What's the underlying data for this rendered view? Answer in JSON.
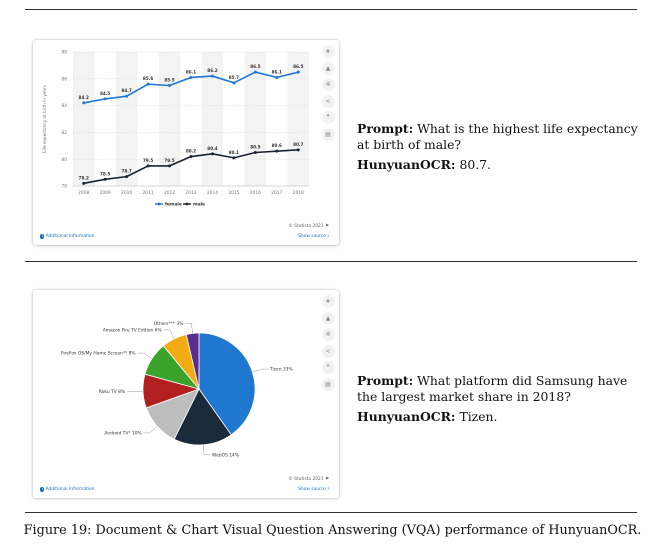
{
  "panels": [
    {
      "id": "line",
      "chart_data": {
        "type": "line",
        "x": [
          "2008",
          "2009",
          "2010",
          "2011",
          "2012",
          "2013",
          "2014",
          "2015",
          "2016",
          "2017",
          "2018"
        ],
        "series": [
          {
            "name": "female",
            "color": "#1f77d0",
            "values": [
              84.2,
              84.5,
              84.7,
              85.6,
              85.5,
              86.1,
              86.2,
              85.7,
              86.5,
              86.1,
              86.5
            ],
            "labels": [
              "84.2",
              "84.5",
              "84.7",
              "85.6",
              "85.5",
              "86.1",
              "86.2",
              "85.7",
              "86.5",
              "86.1",
              "86.5"
            ]
          },
          {
            "name": "male",
            "color": "#1a2430",
            "values": [
              78.2,
              78.5,
              78.7,
              79.5,
              79.5,
              80.2,
              80.4,
              80.1,
              80.5,
              80.6,
              80.7
            ],
            "labels": [
              "78.2",
              "78.5",
              "78.7",
              "79.5",
              "79.5",
              "80.2",
              "80.4",
              "80.1",
              "80.5",
              "80.6",
              "80.7"
            ]
          }
        ],
        "yticks": [
          "78",
          "80",
          "82",
          "84",
          "86",
          "88"
        ],
        "ylim": [
          78,
          88
        ],
        "ylabel": "Life expectancy at birth in years",
        "legend": "bottom-center",
        "grid": true
      },
      "credit": "© Statista 2021",
      "additional_info": "Additional Information",
      "show_source": "Show source",
      "prompt_label": "Prompt:",
      "prompt": "What is the highest life expectancy at birth of male?",
      "answer_label": "HunyuanOCR:",
      "answer": "80.7."
    },
    {
      "id": "pie",
      "chart_data": {
        "type": "pie",
        "slices": [
          {
            "label": "Tizen",
            "value": 33,
            "display": "Tizen 33%",
            "color": "#1f77d0"
          },
          {
            "label": "WebOS",
            "value": 14,
            "display": "WebOS 14%",
            "color": "#1b2a3a"
          },
          {
            "label": "Android TV*",
            "value": 10,
            "display": "Android TV* 10%",
            "color": "#bdbdbd"
          },
          {
            "label": "Roku TV",
            "value": 8,
            "display": "Roku TV 8%",
            "color": "#b21f1f"
          },
          {
            "label": "FireFox OS/My Home Screen**",
            "value": 8,
            "display": "FireFox OS/My Home Screen** 8%",
            "color": "#3aa32c"
          },
          {
            "label": "Amazon Fire TV Edition",
            "value": 6,
            "display": "Amazon Fire TV Edition 6%",
            "color": "#f2ab12"
          },
          {
            "label": "Others***",
            "value": 3,
            "display": "Others*** 3%",
            "color": "#5b2d8c"
          }
        ]
      },
      "credit": "© Statista 2021",
      "additional_info": "Additional Information",
      "show_source": "Show source",
      "prompt_label": "Prompt:",
      "prompt": "What platform did Samsung have the largest market share in 2018?",
      "answer_label": "HunyuanOCR:",
      "answer": "Tizen."
    }
  ],
  "side_icons": [
    {
      "name": "star-icon",
      "glyph": "★"
    },
    {
      "name": "bell-icon",
      "glyph": "▲"
    },
    {
      "name": "gear-icon",
      "glyph": "✲"
    },
    {
      "name": "share-icon",
      "glyph": "<"
    },
    {
      "name": "quote-icon",
      "glyph": "❞"
    },
    {
      "name": "print-icon",
      "glyph": "▤"
    }
  ],
  "caption": "Figure 19: Document & Chart Visual Question Answering (VQA) performance of HunyuanOCR."
}
